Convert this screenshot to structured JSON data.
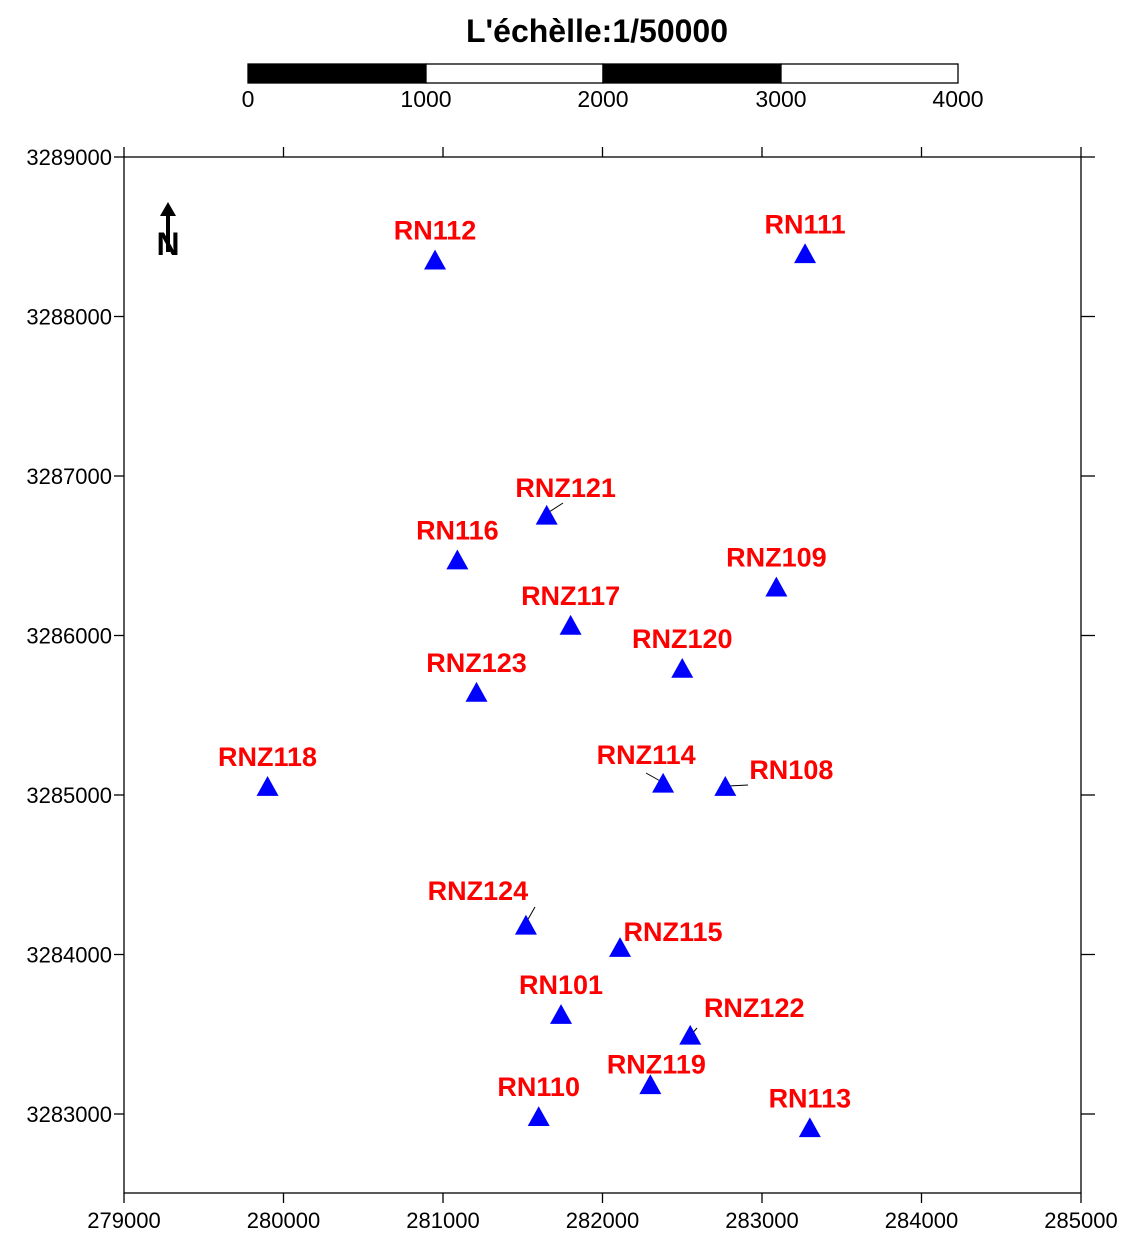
{
  "scale_bar": {
    "title": "L'échèlle:1/50000",
    "labels": [
      "0",
      "1000",
      "2000",
      "3000",
      "4000"
    ],
    "colors": [
      "#000000",
      "#ffffff",
      "#000000",
      "#ffffff"
    ]
  },
  "chart_data": {
    "type": "scatter",
    "xlim": [
      279000,
      285000
    ],
    "ylim": [
      3282500,
      3289000
    ],
    "x_ticks": [
      "279000",
      "280000",
      "281000",
      "282000",
      "283000",
      "284000",
      "285000"
    ],
    "y_ticks": [
      "3289000",
      "3288000",
      "3287000",
      "3286000",
      "3285000",
      "3284000",
      "3283000"
    ],
    "marker": "triangle",
    "marker_color": "#0000ff",
    "label_color": "#ff0000",
    "grid": false,
    "north_arrow_label": "N",
    "points": [
      {
        "name": "RN112",
        "x": 280950,
        "y": 3288350
      },
      {
        "name": "RN111",
        "x": 283270,
        "y": 3288390
      },
      {
        "name": "RNZ121",
        "x": 281650,
        "y": 3286750
      },
      {
        "name": "RN116",
        "x": 281090,
        "y": 3286470
      },
      {
        "name": "RNZ109",
        "x": 283090,
        "y": 3286300
      },
      {
        "name": "RNZ117",
        "x": 281800,
        "y": 3286060
      },
      {
        "name": "RNZ120",
        "x": 282500,
        "y": 3285790
      },
      {
        "name": "RNZ123",
        "x": 281210,
        "y": 3285640
      },
      {
        "name": "RNZ118",
        "x": 279900,
        "y": 3285050
      },
      {
        "name": "RNZ114",
        "x": 282380,
        "y": 3285070
      },
      {
        "name": "RN108",
        "x": 282770,
        "y": 3285050
      },
      {
        "name": "RNZ124",
        "x": 281520,
        "y": 3284180
      },
      {
        "name": "RNZ115",
        "x": 282110,
        "y": 3284040
      },
      {
        "name": "RN101",
        "x": 281740,
        "y": 3283620
      },
      {
        "name": "RNZ122",
        "x": 282550,
        "y": 3283490
      },
      {
        "name": "RNZ119",
        "x": 282300,
        "y": 3283180
      },
      {
        "name": "RN110",
        "x": 281600,
        "y": 3282980
      },
      {
        "name": "RN113",
        "x": 283300,
        "y": 3282910
      }
    ]
  }
}
